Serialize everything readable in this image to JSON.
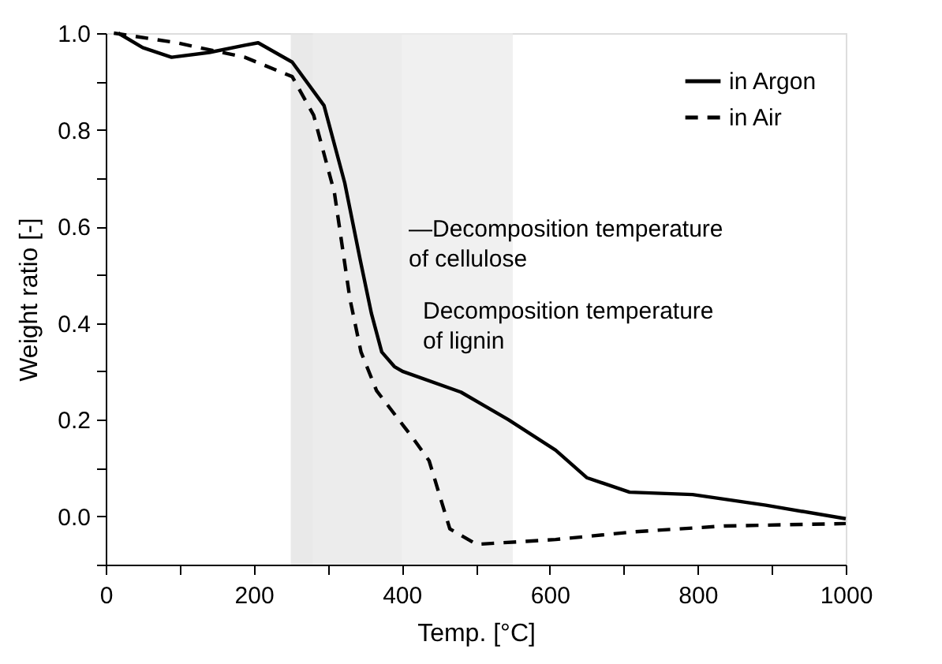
{
  "chart_data": {
    "type": "line",
    "xlabel": "Temp. [°C]",
    "ylabel": "Weight ratio [-]",
    "xlim": [
      0,
      1000
    ],
    "ylim": [
      -0.1,
      1.0
    ],
    "xticks": [
      0,
      {
        "value": 100,
        "label": null
      },
      200,
      {
        "value": 300,
        "label": null
      },
      400,
      {
        "value": 500,
        "label": null
      },
      600,
      {
        "value": 700,
        "label": null
      },
      800,
      {
        "value": 900,
        "label": null
      },
      1000
    ],
    "yticks": [
      {
        "value": -0.1,
        "label": null
      },
      {
        "value": 0.0,
        "label": "0.0"
      },
      {
        "value": 0.1,
        "label": null
      },
      0.2,
      {
        "value": 0.3,
        "label": null
      },
      0.4,
      {
        "value": 0.5,
        "label": null
      },
      0.6,
      {
        "value": 0.7,
        "label": null
      },
      0.8,
      {
        "value": 0.9,
        "label": null
      },
      {
        "value": 1.0,
        "label": "1.0"
      }
    ],
    "grid": false,
    "legend": "top right",
    "marker": "none",
    "series": [
      {
        "name": "in Argon",
        "color": "#000000",
        "line_style": "solid",
        "x": [
          17,
          50,
          89,
          140,
          188,
          206,
          252,
          295,
          323,
          344,
          359,
          373,
          390,
          401,
          480,
          544,
          608,
          650,
          708,
          793,
          892,
          1000
        ],
        "values": [
          1.0,
          0.97,
          0.95,
          0.96,
          0.975,
          0.98,
          0.94,
          0.85,
          0.69,
          0.53,
          0.42,
          0.34,
          0.31,
          0.3,
          0.257,
          0.2,
          0.137,
          0.08,
          0.05,
          0.045,
          0.023,
          -0.005
        ]
      },
      {
        "name": "in Air",
        "color": "#000000",
        "line_style": "dashed",
        "x": [
          11,
          96,
          188,
          252,
          281,
          309,
          330,
          345,
          366,
          416,
          437,
          465,
          501,
          608,
          714,
          836,
          1000
        ],
        "values": [
          1.0,
          0.98,
          0.95,
          0.91,
          0.83,
          0.67,
          0.45,
          0.34,
          0.26,
          0.16,
          0.115,
          -0.026,
          -0.058,
          -0.048,
          -0.032,
          -0.02,
          -0.015
        ]
      }
    ],
    "bands": [
      {
        "axis": "x",
        "from": 250,
        "to": 400,
        "color": "#e4e4e4"
      },
      {
        "axis": "x",
        "from": 280,
        "to": 550,
        "color": "#ececec"
      }
    ],
    "annotations": [
      "—Decomposition temperature\nof cellulose",
      "Decomposition temperature\nof lignin"
    ]
  }
}
